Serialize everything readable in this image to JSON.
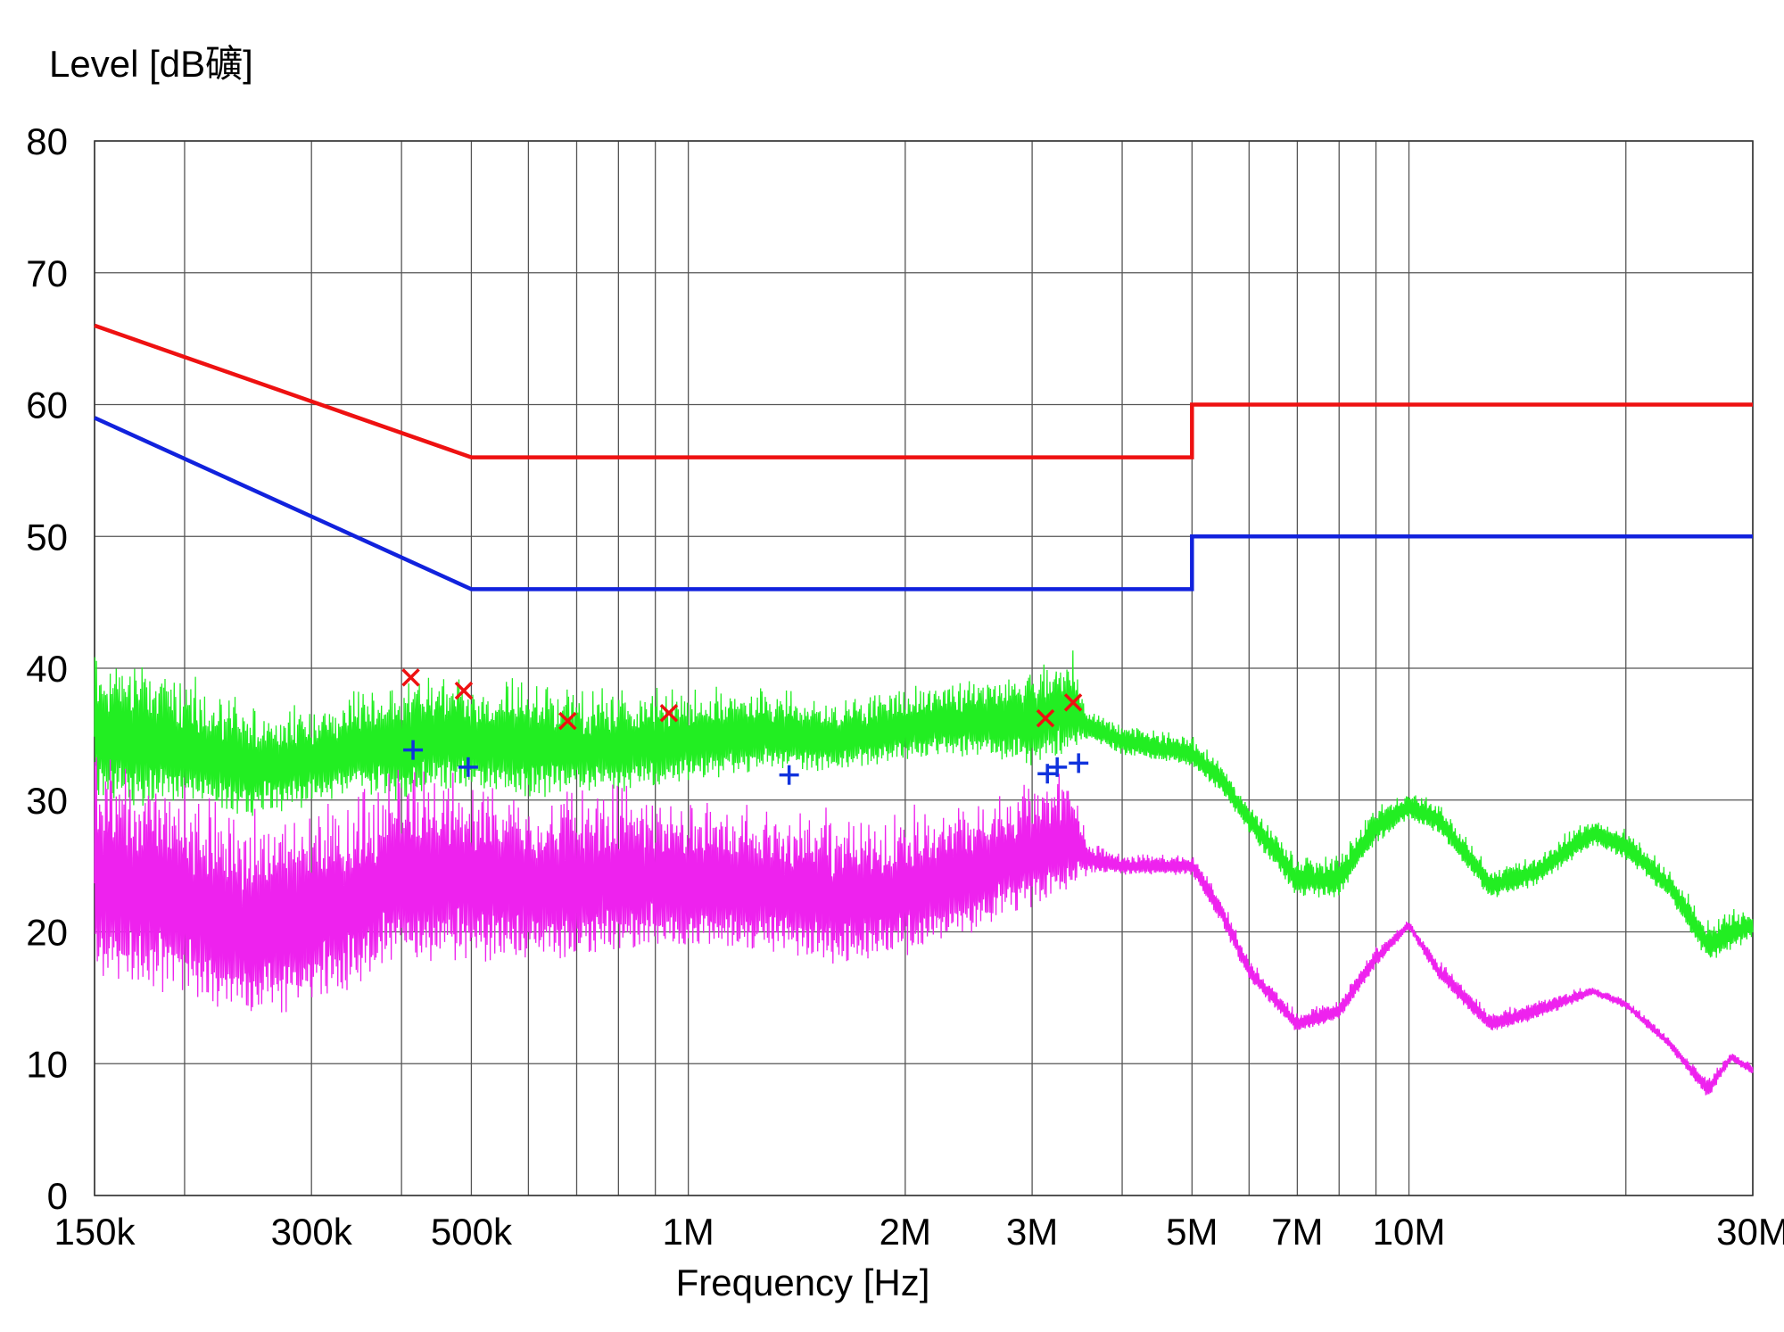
{
  "chart_data": {
    "type": "line",
    "ylabel": "Level [dB礦]",
    "xlabel": "Frequency [Hz]",
    "x_scale": "log",
    "xlim": [
      150000,
      30000000
    ],
    "ylim": [
      0,
      80
    ],
    "grid": true,
    "y_ticks": [
      0,
      10,
      20,
      30,
      40,
      50,
      60,
      70,
      80
    ],
    "x_tick_labels": [
      {
        "value": 150000,
        "label": "150k"
      },
      {
        "value": 300000,
        "label": "300k"
      },
      {
        "value": 500000,
        "label": "500k"
      },
      {
        "value": 1000000,
        "label": "1M"
      },
      {
        "value": 2000000,
        "label": "2M"
      },
      {
        "value": 3000000,
        "label": "3M"
      },
      {
        "value": 5000000,
        "label": "5M"
      },
      {
        "value": 7000000,
        "label": "7M"
      },
      {
        "value": 10000000,
        "label": "10M"
      },
      {
        "value": 30000000,
        "label": "30M"
      }
    ],
    "x_gridlines": [
      150000,
      200000,
      300000,
      400000,
      500000,
      600000,
      700000,
      800000,
      900000,
      1000000,
      2000000,
      3000000,
      4000000,
      5000000,
      6000000,
      7000000,
      8000000,
      9000000,
      10000000,
      20000000,
      30000000
    ],
    "limit_lines": [
      {
        "color": "#ee1111",
        "points": [
          [
            150000,
            66
          ],
          [
            500000,
            56
          ],
          [
            5000000,
            56
          ],
          [
            5000000,
            60
          ],
          [
            30000000,
            60
          ]
        ]
      },
      {
        "color": "#1122dd",
        "points": [
          [
            150000,
            59
          ],
          [
            500000,
            46
          ],
          [
            5000000,
            46
          ],
          [
            5000000,
            50
          ],
          [
            30000000,
            50
          ]
        ]
      }
    ],
    "series": [
      {
        "color": "#22ee22",
        "envelope": [
          [
            150000,
            28,
            42
          ],
          [
            170000,
            27,
            42
          ],
          [
            200000,
            28,
            40
          ],
          [
            250000,
            27,
            38
          ],
          [
            300000,
            28,
            38
          ],
          [
            350000,
            29,
            39
          ],
          [
            400000,
            28,
            40
          ],
          [
            450000,
            29,
            41
          ],
          [
            500000,
            29,
            40
          ],
          [
            600000,
            28,
            40
          ],
          [
            700000,
            29,
            39
          ],
          [
            800000,
            29,
            39
          ],
          [
            1000000,
            30,
            39
          ],
          [
            1300000,
            31,
            39
          ],
          [
            1600000,
            31,
            38
          ],
          [
            2000000,
            32,
            39
          ],
          [
            2500000,
            32,
            40
          ],
          [
            3000000,
            31,
            41
          ],
          [
            3400000,
            32,
            42
          ],
          [
            3600000,
            34,
            37
          ],
          [
            4000000,
            33,
            36
          ],
          [
            5000000,
            32,
            35
          ],
          [
            5500000,
            30,
            33
          ],
          [
            6000000,
            27,
            30
          ],
          [
            7000000,
            22,
            26
          ],
          [
            8000000,
            22,
            26
          ],
          [
            9000000,
            26,
            30
          ],
          [
            10000000,
            28,
            31
          ],
          [
            11000000,
            27,
            30
          ],
          [
            13000000,
            22,
            25
          ],
          [
            15000000,
            23,
            26
          ],
          [
            18000000,
            26,
            29
          ],
          [
            20000000,
            25,
            28
          ],
          [
            23000000,
            22,
            25
          ],
          [
            26000000,
            17,
            21
          ],
          [
            28000000,
            18,
            22
          ],
          [
            30000000,
            19,
            22
          ]
        ]
      },
      {
        "color": "#ee22ee",
        "envelope": [
          [
            150000,
            13,
            35
          ],
          [
            200000,
            12,
            32
          ],
          [
            250000,
            10,
            30
          ],
          [
            300000,
            11,
            31
          ],
          [
            350000,
            13,
            32
          ],
          [
            400000,
            14,
            34
          ],
          [
            450000,
            15,
            33
          ],
          [
            500000,
            15,
            33
          ],
          [
            600000,
            15,
            32
          ],
          [
            700000,
            15,
            32
          ],
          [
            800000,
            16,
            32
          ],
          [
            1000000,
            16,
            31
          ],
          [
            1300000,
            16,
            31
          ],
          [
            1600000,
            15,
            30
          ],
          [
            2000000,
            16,
            30
          ],
          [
            2500000,
            18,
            31
          ],
          [
            3000000,
            20,
            32
          ],
          [
            3400000,
            21,
            33
          ],
          [
            3600000,
            24,
            27
          ],
          [
            4000000,
            24,
            26
          ],
          [
            5000000,
            24,
            26
          ],
          [
            5500000,
            20,
            23
          ],
          [
            6000000,
            16,
            18
          ],
          [
            7000000,
            12,
            14
          ],
          [
            8000000,
            13,
            15
          ],
          [
            9000000,
            17,
            19
          ],
          [
            10000000,
            20,
            21
          ],
          [
            11000000,
            16,
            18
          ],
          [
            13000000,
            12,
            14
          ],
          [
            15000000,
            13,
            15
          ],
          [
            18000000,
            15,
            16
          ],
          [
            20000000,
            14,
            15
          ],
          [
            23000000,
            11,
            12
          ],
          [
            26000000,
            7,
            9
          ],
          [
            28000000,
            10,
            11
          ],
          [
            30000000,
            9,
            10
          ]
        ]
      }
    ],
    "markers_x": [
      {
        "x": 412000,
        "y": 39.3,
        "color": "#ee1111"
      },
      {
        "x": 488000,
        "y": 38.3,
        "color": "#ee1111"
      },
      {
        "x": 680000,
        "y": 36.0,
        "color": "#ee1111"
      },
      {
        "x": 940000,
        "y": 36.6,
        "color": "#ee1111"
      },
      {
        "x": 3130000,
        "y": 36.2,
        "color": "#ee1111"
      },
      {
        "x": 3420000,
        "y": 37.4,
        "color": "#ee1111"
      }
    ],
    "markers_plus": [
      {
        "x": 415000,
        "y": 33.8,
        "color": "#1133dd"
      },
      {
        "x": 495000,
        "y": 32.5,
        "color": "#1133dd"
      },
      {
        "x": 1380000,
        "y": 31.9,
        "color": "#1133dd"
      },
      {
        "x": 3150000,
        "y": 32.0,
        "color": "#1133dd"
      },
      {
        "x": 3250000,
        "y": 32.5,
        "color": "#1133dd"
      },
      {
        "x": 3480000,
        "y": 32.8,
        "color": "#1133dd"
      }
    ]
  }
}
